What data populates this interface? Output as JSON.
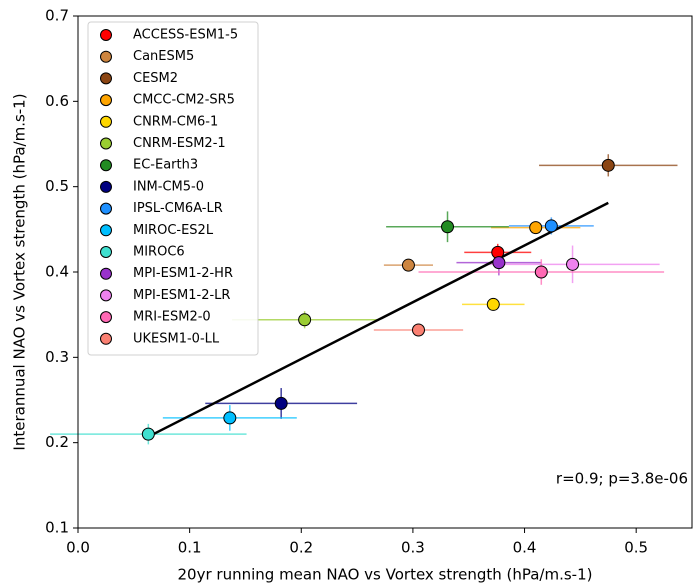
{
  "chart_data": {
    "type": "scatter",
    "xlabel": "20yr running mean NAO vs Vortex strength (hPa/m.s-1)",
    "ylabel": "Interannual NAO vs Vortex strength (hPa/m.s-1)",
    "annotation": "r=0.9; p=3.8e-06",
    "xlim": [
      0,
      0.55
    ],
    "ylim": [
      0.1,
      0.7
    ],
    "xticks": [
      {
        "value": 0,
        "label": "0.0"
      },
      0.1,
      0.2,
      0.3,
      0.4,
      0.5
    ],
    "yticks": [
      0.1,
      0.2,
      0.3,
      0.4,
      0.5,
      0.6,
      0.7
    ],
    "legend": "upper left",
    "series": [
      {
        "name": "ACCESS-ESM1-5",
        "color": "#ff0000",
        "x": 0.376,
        "y": 0.423,
        "xerr": 0.03,
        "yerr": 0.01
      },
      {
        "name": "CanESM5",
        "color": "#cd853f",
        "x": 0.296,
        "y": 0.408,
        "xerr": 0.022,
        "yerr": 0.006
      },
      {
        "name": "CESM2",
        "color": "#8b4513",
        "x": 0.475,
        "y": 0.525,
        "xerr": 0.062,
        "yerr": 0.013
      },
      {
        "name": "CMCC-CM2-SR5",
        "color": "#ffa500",
        "x": 0.41,
        "y": 0.452,
        "xerr": 0.04,
        "yerr": 0.006
      },
      {
        "name": "CNRM-CM6-1",
        "color": "#ffd700",
        "x": 0.372,
        "y": 0.362,
        "xerr": 0.028,
        "yerr": 0.006
      },
      {
        "name": "CNRM-ESM2-1",
        "color": "#9acd32",
        "x": 0.203,
        "y": 0.344,
        "xerr": 0.065,
        "yerr": 0.01
      },
      {
        "name": "EC-Earth3",
        "color": "#228b22",
        "x": 0.331,
        "y": 0.453,
        "xerr": 0.055,
        "yerr": 0.018
      },
      {
        "name": "INM-CM5-0",
        "color": "#000080",
        "x": 0.182,
        "y": 0.246,
        "xerr": 0.068,
        "yerr": 0.018
      },
      {
        "name": "IPSL-CM6A-LR",
        "color": "#1e90ff",
        "x": 0.424,
        "y": 0.454,
        "xerr": 0.038,
        "yerr": 0.01
      },
      {
        "name": "MIROC-ES2L",
        "color": "#00bfff",
        "x": 0.136,
        "y": 0.229,
        "xerr": 0.06,
        "yerr": 0.015
      },
      {
        "name": "MIROC6",
        "color": "#40e0d0",
        "x": 0.063,
        "y": 0.21,
        "xerr": 0.088,
        "yerr": 0.012
      },
      {
        "name": "MPI-ESM1-2-HR",
        "color": "#9932cc",
        "x": 0.377,
        "y": 0.411,
        "xerr": 0.038,
        "yerr": 0.015
      },
      {
        "name": "MPI-ESM1-2-LR",
        "color": "#ee82ee",
        "x": 0.443,
        "y": 0.409,
        "xerr": 0.078,
        "yerr": 0.022
      },
      {
        "name": "MRI-ESM2-0",
        "color": "#ff69b4",
        "x": 0.415,
        "y": 0.4,
        "xerr": 0.11,
        "yerr": 0.015
      },
      {
        "name": "UKESM1-0-LL",
        "color": "#fa8072",
        "x": 0.305,
        "y": 0.332,
        "xerr": 0.04,
        "yerr": 0.006
      }
    ],
    "fit": {
      "color": "#000000",
      "x": [
        0.063,
        0.475
      ],
      "y": [
        0.207,
        0.481
      ]
    }
  }
}
